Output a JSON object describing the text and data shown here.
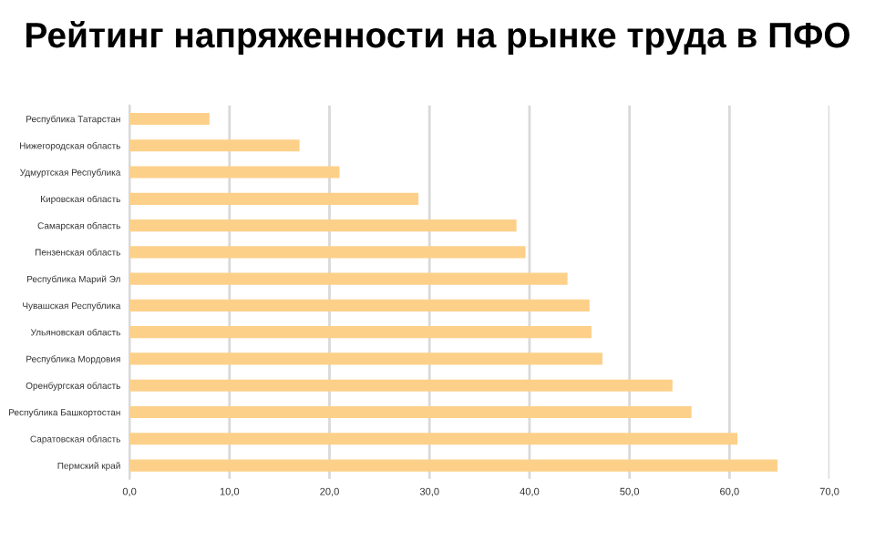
{
  "chart_data": {
    "type": "bar",
    "orientation": "horizontal",
    "title": "Рейтинг напряженности на рынке труда в ПФО",
    "categories": [
      "Республика Татарстан",
      "Нижегородская область",
      "Удмуртская Республика",
      "Кировская область",
      "Самарская область",
      "Пензенская область",
      "Республика Марий Эл",
      "Чувашская Республика",
      "Ульяновская область",
      "Республика Мордовия",
      "Оренбургская область",
      "Республика Башкортостан",
      "Саратовская область",
      "Пермский край"
    ],
    "values": [
      8.0,
      17.0,
      21.0,
      28.9,
      38.7,
      39.6,
      43.8,
      46.0,
      46.2,
      47.3,
      54.3,
      56.2,
      60.8,
      64.8
    ],
    "color": "#fdd08a",
    "xlim": [
      0,
      70
    ],
    "xticks": [
      {
        "value": 0,
        "label": "0,0"
      },
      {
        "value": 10,
        "label": "10,0"
      },
      {
        "value": 20,
        "label": "20,0"
      },
      {
        "value": 30,
        "label": "30,0"
      },
      {
        "value": 40,
        "label": "40,0"
      },
      {
        "value": 50,
        "label": "50,0"
      },
      {
        "value": 60,
        "label": "60,0"
      },
      {
        "value": 70,
        "label": "70,0"
      }
    ],
    "grid": "x",
    "legend": false
  }
}
